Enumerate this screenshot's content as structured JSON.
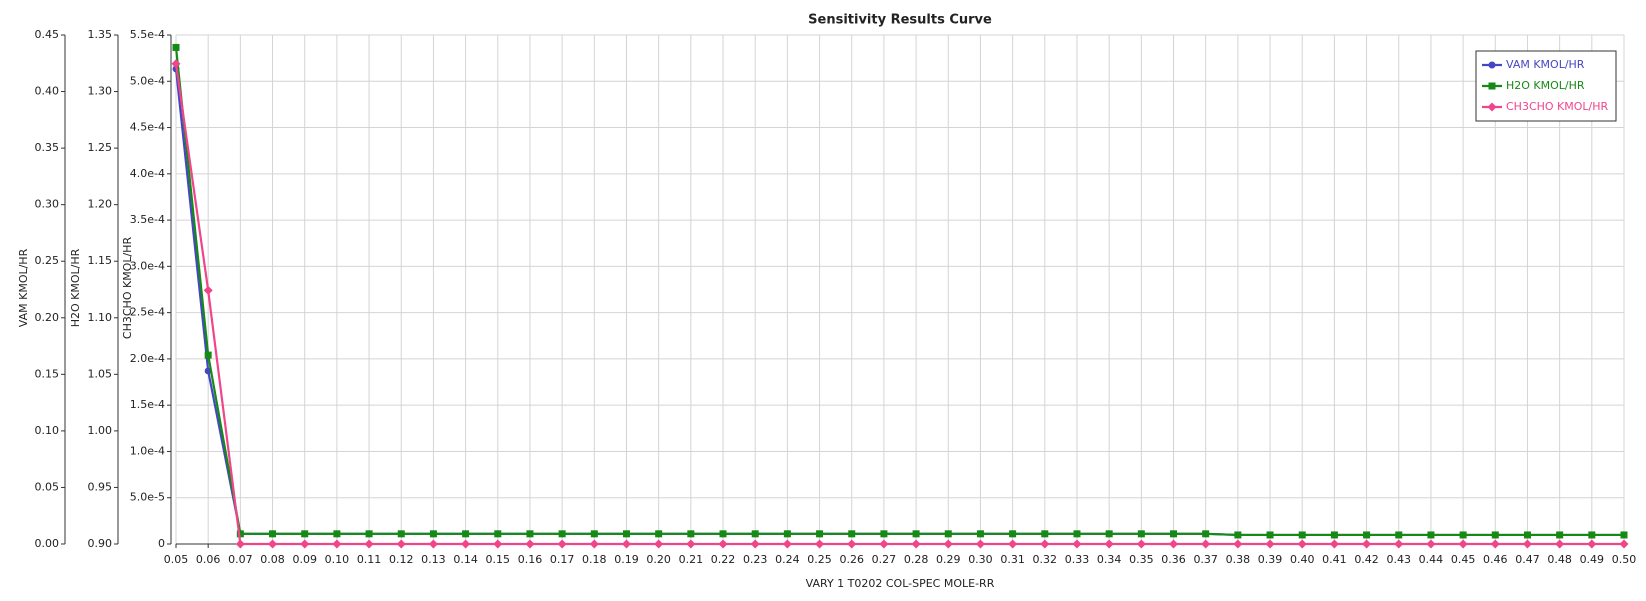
{
  "chart_data": {
    "type": "line",
    "title": "Sensitivity Results Curve",
    "x_label": "VARY   1 T0202 COL-SPEC MOLE-RR",
    "y_label": "VAM KMOL/HR",
    "y2_label": "H2O KMOL/HR",
    "y3_label": "CH3CHO KMOL/HR",
    "x": [
      0.05,
      0.06,
      0.07,
      0.08,
      0.09,
      0.1,
      0.11,
      0.12,
      0.13,
      0.14,
      0.15,
      0.16,
      0.17,
      0.18,
      0.19,
      0.2,
      0.21,
      0.22,
      0.23,
      0.24,
      0.25,
      0.26,
      0.27,
      0.28,
      0.29,
      0.3,
      0.31,
      0.32,
      0.33,
      0.34,
      0.35,
      0.36,
      0.37,
      0.38,
      0.39,
      0.4,
      0.41,
      0.42,
      0.43,
      0.44,
      0.45,
      0.46,
      0.47,
      0.48,
      0.49,
      0.5
    ],
    "xlim": [
      0.05,
      0.5
    ],
    "xticks": [
      0.05,
      0.06,
      0.07,
      0.08,
      0.09,
      {
        "value": 0.1,
        "label": "0.10"
      },
      0.11,
      0.12,
      0.13,
      0.14,
      0.15,
      0.16,
      0.17,
      0.18,
      0.19,
      {
        "value": 0.2,
        "label": "0.20"
      },
      0.21,
      0.22,
      0.23,
      0.24,
      0.25,
      0.26,
      0.27,
      0.28,
      0.29,
      {
        "value": 0.3,
        "label": "0.30"
      },
      0.31,
      0.32,
      0.33,
      0.34,
      0.35,
      0.36,
      0.37,
      0.38,
      0.39,
      {
        "value": 0.4,
        "label": "0.40"
      },
      0.41,
      0.42,
      0.43,
      0.44,
      0.45,
      0.46,
      0.47,
      0.48,
      0.49,
      {
        "value": 0.5,
        "label": "0.50"
      }
    ],
    "ylim": [
      0,
      0.45
    ],
    "yticks": [
      {
        "value": 0,
        "label": "0.00"
      },
      0.05,
      {
        "value": 0.1,
        "label": "0.10"
      },
      0.15,
      {
        "value": 0.2,
        "label": "0.20"
      },
      0.25,
      {
        "value": 0.3,
        "label": "0.30"
      },
      0.35,
      {
        "value": 0.4,
        "label": "0.40"
      },
      0.45
    ],
    "y2lim": [
      0.9,
      1.35
    ],
    "y2ticks": [
      {
        "value": 0.9,
        "label": "0.90"
      },
      0.95,
      {
        "value": 1,
        "label": "1.00"
      },
      1.05,
      {
        "value": 1.1,
        "label": "1.10"
      },
      1.15,
      {
        "value": 1.2,
        "label": "1.20"
      },
      1.25,
      {
        "value": 1.3,
        "label": "1.30"
      },
      1.35
    ],
    "y3lim": [
      0,
      0.00055
    ],
    "y3ticks": [
      0,
      {
        "value": 5e-05,
        "label": "5.0e-5"
      },
      {
        "value": 0.0001,
        "label": "1.0e-4"
      },
      {
        "value": 0.00015,
        "label": "1.5e-4"
      },
      {
        "value": 0.0002,
        "label": "2.0e-4"
      },
      {
        "value": 0.00025,
        "label": "2.5e-4"
      },
      {
        "value": 0.0003,
        "label": "3.0e-4"
      },
      {
        "value": 0.00035,
        "label": "3.5e-4"
      },
      {
        "value": 0.0004,
        "label": "4.0e-4"
      },
      {
        "value": 0.00045,
        "label": "4.5e-4"
      },
      {
        "value": 0.0005,
        "label": "5.0e-4"
      },
      {
        "value": 0.00055,
        "label": "5.5e-4"
      }
    ],
    "grid": true,
    "legend": "upper right",
    "series": [
      {
        "name": "VAM KMOL/HR",
        "color": "#4646c4",
        "marker": "circle",
        "axis": "y",
        "values": [
          0.42,
          0.153,
          0.009,
          0.009,
          0.009,
          0.009,
          0.009,
          0.009,
          0.009,
          0.009,
          0.009,
          0.009,
          0.009,
          0.009,
          0.009,
          0.009,
          0.009,
          0.009,
          0.009,
          0.009,
          0.009,
          0.009,
          0.009,
          0.009,
          0.009,
          0.009,
          0.009,
          0.009,
          0.009,
          0.009,
          0.009,
          0.009,
          0.009,
          0.008,
          0.008,
          0.008,
          0.008,
          0.008,
          0.008,
          0.008,
          0.008,
          0.008,
          0.008,
          0.008,
          0.008,
          0.008
        ]
      },
      {
        "name": "H2O KMOL/HR",
        "color": "#158a15",
        "marker": "square",
        "axis": "y2",
        "values": [
          1.339,
          1.067,
          0.909,
          0.909,
          0.909,
          0.909,
          0.909,
          0.909,
          0.909,
          0.909,
          0.909,
          0.909,
          0.909,
          0.909,
          0.909,
          0.909,
          0.909,
          0.909,
          0.909,
          0.909,
          0.909,
          0.909,
          0.909,
          0.909,
          0.909,
          0.909,
          0.909,
          0.909,
          0.909,
          0.909,
          0.909,
          0.909,
          0.909,
          0.908,
          0.908,
          0.908,
          0.908,
          0.908,
          0.908,
          0.908,
          0.908,
          0.908,
          0.908,
          0.908,
          0.908,
          0.908
        ]
      },
      {
        "name": "CH3CHO KMOL/HR",
        "color": "#f0458b",
        "marker": "diamond",
        "axis": "y3",
        "values": [
          0.000519,
          0.000274,
          0,
          0,
          0,
          0,
          0,
          0,
          0,
          0,
          0,
          0,
          0,
          0,
          0,
          0,
          0,
          0,
          0,
          0,
          0,
          0,
          0,
          0,
          0,
          0,
          0,
          0,
          0,
          0,
          0,
          0,
          0,
          0,
          0,
          0,
          0,
          0,
          0,
          0,
          0,
          0,
          0,
          0,
          0,
          0
        ]
      }
    ]
  }
}
